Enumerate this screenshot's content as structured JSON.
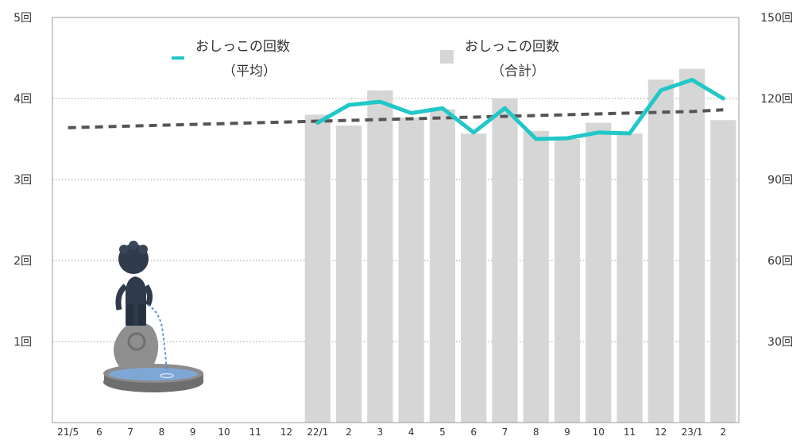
{
  "chart_data": {
    "type": "bar",
    "categories": [
      "21/5",
      "6",
      "7",
      "8",
      "9",
      "10",
      "11",
      "12",
      "22/1",
      "2",
      "3",
      "4",
      "5",
      "6",
      "7",
      "8",
      "9",
      "10",
      "11",
      "12",
      "23/1",
      "2"
    ],
    "series": [
      {
        "name": "おしっこの回数\n（合計）",
        "type": "bar",
        "axis": "right",
        "color": "#d6d6d6",
        "values": [
          null,
          null,
          null,
          null,
          null,
          null,
          null,
          null,
          114,
          110,
          123,
          113,
          116,
          107,
          120,
          108,
          105,
          111,
          107,
          127,
          131,
          112
        ]
      },
      {
        "name": "おしっこの回数\n（平均）",
        "type": "line",
        "axis": "left",
        "color": "#22c7c7",
        "values": [
          null,
          null,
          null,
          null,
          null,
          null,
          null,
          null,
          3.7,
          3.92,
          3.96,
          3.82,
          3.88,
          3.58,
          3.88,
          3.5,
          3.51,
          3.58,
          3.57,
          4.1,
          4.23,
          4.0
        ]
      },
      {
        "name": "",
        "type": "trendline",
        "axis": "left",
        "color": "#555555",
        "values": [
          3.64,
          3.65,
          3.66,
          3.67,
          3.68,
          3.69,
          3.7,
          3.71,
          3.72,
          3.73,
          3.74,
          3.75,
          3.76,
          3.77,
          3.78,
          3.79,
          3.8,
          3.81,
          3.82,
          3.83,
          3.84,
          3.86
        ]
      }
    ],
    "y_left": {
      "min": 0,
      "max": 5,
      "ticks": [
        1,
        2,
        3,
        4,
        5
      ],
      "unit": "回"
    },
    "y_right": {
      "min": 0,
      "max": 150,
      "ticks": [
        30,
        60,
        90,
        120,
        150
      ],
      "unit": "回"
    },
    "grid": true,
    "legend_position": "top"
  },
  "legend": {
    "avg_line1": "おしっこの回数",
    "avg_line2": "（平均）",
    "total_line1": "おしっこの回数",
    "total_line2": "（合計）"
  },
  "illustration": {
    "name": "manneken-pis-fountain"
  }
}
